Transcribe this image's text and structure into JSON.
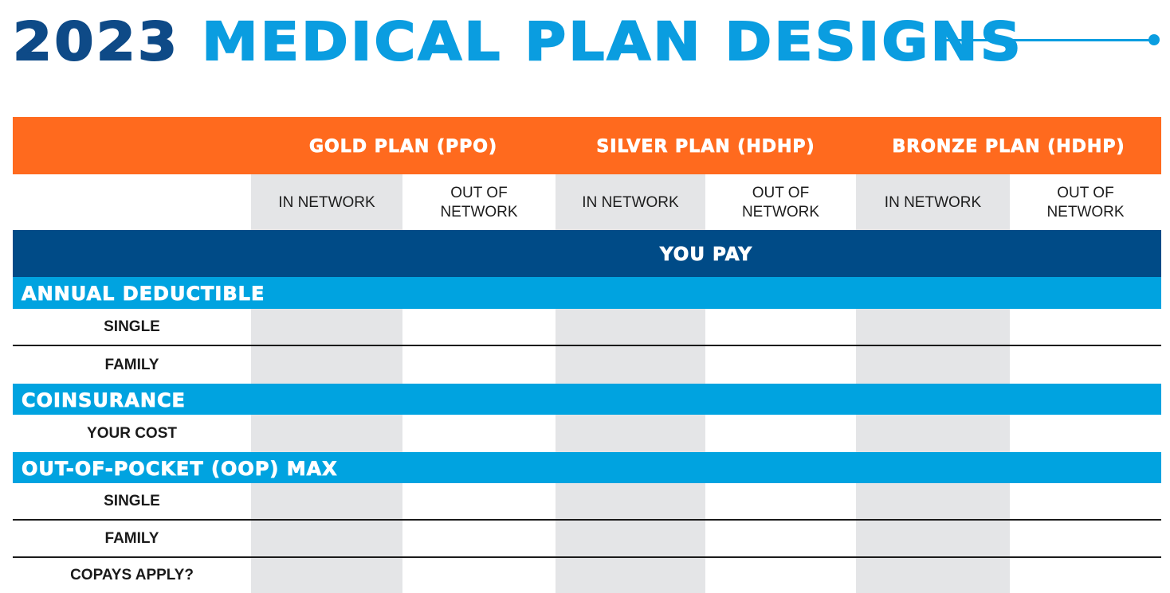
{
  "header": {
    "year": "2023",
    "title": "MEDICAL PLAN DESIGNS"
  },
  "colors": {
    "navy": "#0e4a87",
    "blue": "#0a9de0",
    "orange": "#ff6a1e",
    "section_blue": "#00a3e0",
    "table_navy": "#004b87",
    "gray_column": "#e4e5e7"
  },
  "plans": [
    {
      "name": "GOLD PLAN (PPO)"
    },
    {
      "name": "SILVER PLAN (HDHP)"
    },
    {
      "name": "BRONZE PLAN (HDHP)"
    }
  ],
  "network_labels": {
    "in": "IN NETWORK",
    "out_line1": "OUT OF",
    "out_line2": "NETWORK"
  },
  "you_pay": "YOU PAY",
  "sections": {
    "deductible": {
      "title": "ANNUAL DEDUCTIBLE",
      "rows": [
        "SINGLE",
        "FAMILY"
      ]
    },
    "coinsurance": {
      "title": "COINSURANCE",
      "rows": [
        "YOUR COST"
      ]
    },
    "oop": {
      "title": "OUT-OF-POCKET (OOP) MAX",
      "rows": [
        "SINGLE",
        "FAMILY",
        "COPAYS APPLY?"
      ]
    }
  }
}
